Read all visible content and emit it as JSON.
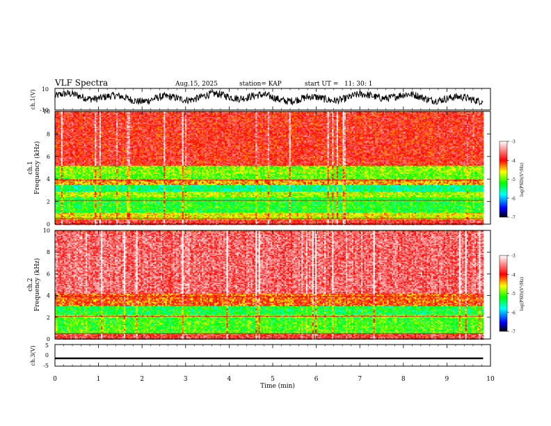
{
  "header": {
    "title": "VLF Spectra",
    "date": "Aug.15, 2025",
    "station": "station= KAP",
    "start": "start UT =   11: 30: 1"
  },
  "chart_data": [
    {
      "type": "line",
      "name": "ch.1 waveform",
      "ylabel": "ch.1(V)",
      "ylim": [
        -10,
        10
      ],
      "yticks": [
        "10",
        "-10"
      ],
      "xlim": [
        0,
        10
      ],
      "x_end_min": 9.83,
      "description_of_trace": "noisy signal oscillating roughly between -5 and +8 V",
      "series_color": "#000000"
    },
    {
      "type": "heatmap",
      "name": "ch.1 spectrogram",
      "ylabel": "Frequency (kHz)",
      "ylabel_prefix": "ch.1",
      "ylim": [
        0,
        10
      ],
      "yticks": [
        "0",
        "2",
        "4",
        "6",
        "8",
        "10"
      ],
      "xlim": [
        0,
        10
      ],
      "x_end_min": 9.83,
      "bands_khz": [
        {
          "from": 0,
          "to": 0.5,
          "log_psd": -3.8
        },
        {
          "from": 0.5,
          "to": 1.1,
          "log_psd": -4.6
        },
        {
          "from": 1.1,
          "to": 2.4,
          "log_psd": -5.2
        },
        {
          "from": 2.4,
          "to": 2.9,
          "log_psd": -4.8
        },
        {
          "from": 2.9,
          "to": 3.5,
          "log_psd": -5.5
        },
        {
          "from": 3.5,
          "to": 4.0,
          "log_psd": -4.4
        },
        {
          "from": 4.0,
          "to": 4.5,
          "log_psd": -5.0
        },
        {
          "from": 4.5,
          "to": 5.2,
          "log_psd": -4.9
        },
        {
          "from": 5.2,
          "to": 10,
          "log_psd": -3.9
        }
      ],
      "colorbar": {
        "label": "log(PSD)(V²/Hz)",
        "range": [
          -7,
          -3
        ],
        "ticks": [
          "-3",
          "-4",
          "-5",
          "-6",
          "-7"
        ]
      }
    },
    {
      "type": "heatmap",
      "name": "ch.2 spectrogram",
      "ylabel": "Frequency (kHz)",
      "ylabel_prefix": "ch.2",
      "ylim": [
        0,
        10
      ],
      "yticks": [
        "0",
        "2",
        "4",
        "6",
        "8",
        "10"
      ],
      "xlim": [
        0,
        10
      ],
      "x_end_min": 9.83,
      "bands_khz": [
        {
          "from": 0,
          "to": 0.5,
          "log_psd": -3.8
        },
        {
          "from": 0.5,
          "to": 2.0,
          "log_psd": -5.1
        },
        {
          "from": 2.0,
          "to": 2.3,
          "log_psd": -4.6
        },
        {
          "from": 2.3,
          "to": 3.1,
          "log_psd": -5.3
        },
        {
          "from": 3.1,
          "to": 4.2,
          "log_psd": -4.2
        },
        {
          "from": 4.2,
          "to": 10,
          "log_psd": -3.6
        }
      ],
      "colorbar": {
        "label": "log(PSD)(V²/Hz)",
        "range": [
          -7,
          -3
        ],
        "ticks": [
          "-3",
          "-4",
          "-5",
          "-6",
          "-7"
        ]
      }
    },
    {
      "type": "line",
      "name": "ch.3 waveform",
      "ylabel": "ch.3(V)",
      "ylim": [
        -5,
        5
      ],
      "yticks": [
        "5",
        "0",
        "-5"
      ],
      "xlim": [
        0,
        10
      ],
      "x_end_min": 9.83,
      "level_v": [
        -1.8,
        -1.0
      ],
      "series_color": "#000000"
    }
  ],
  "xaxis": {
    "label": "Time (min)",
    "ticks": [
      "0",
      "1",
      "2",
      "3",
      "4",
      "5",
      "6",
      "7",
      "8",
      "9",
      "10"
    ]
  },
  "colors": {
    "colormap": [
      "#000000",
      "#0000ff",
      "#00ffff",
      "#00ff00",
      "#ffff00",
      "#ff0000",
      "#ffffff"
    ]
  }
}
